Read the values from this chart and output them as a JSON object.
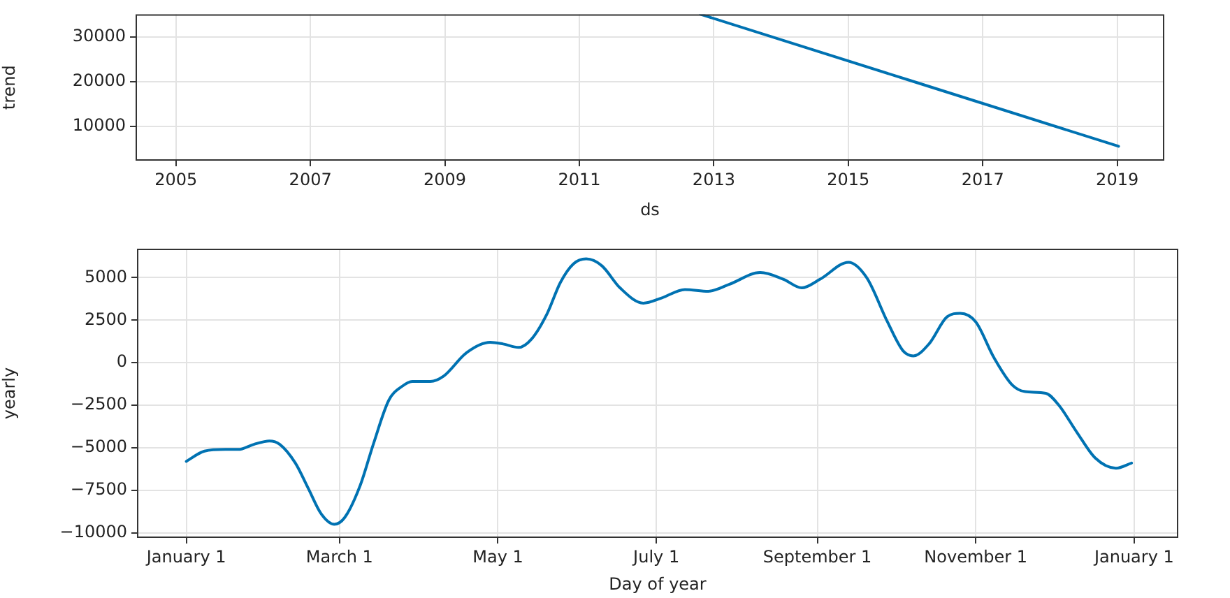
{
  "chart_data": [
    {
      "type": "line",
      "xlabel": "ds",
      "ylabel": "trend",
      "x": [
        2012.8,
        2019.02
      ],
      "series": [
        {
          "color": "#0072b2",
          "values": [
            35000,
            5600
          ]
        }
      ],
      "xlim": [
        2004.4,
        2019.7
      ],
      "xticks": [
        2005,
        2007,
        2009,
        2011,
        2013,
        2015,
        2017,
        2019
      ],
      "ylim": [
        2400,
        35000
      ],
      "yticks": [
        10000,
        20000,
        30000
      ],
      "grid": true
    },
    {
      "type": "line",
      "xlabel": "Day of year",
      "ylabel": "yearly",
      "x": [
        "2017-01-01",
        "2017-01-08",
        "2017-01-16",
        "2017-01-21",
        "2017-01-27",
        "2017-02-02",
        "2017-02-06",
        "2017-02-12",
        "2017-02-17",
        "2017-02-22",
        "2017-02-27",
        "2017-03-03",
        "2017-03-09",
        "2017-03-14",
        "2017-03-20",
        "2017-03-25",
        "2017-03-29",
        "2017-04-05",
        "2017-04-10",
        "2017-04-19",
        "2017-04-28",
        "2017-05-03",
        "2017-05-09",
        "2017-05-14",
        "2017-05-20",
        "2017-05-25",
        "2017-05-30",
        "2017-06-04",
        "2017-06-10",
        "2017-06-17",
        "2017-06-26",
        "2017-07-03",
        "2017-07-12",
        "2017-07-21",
        "2017-07-29",
        "2017-08-10",
        "2017-08-19",
        "2017-08-26",
        "2017-09-02",
        "2017-09-13",
        "2017-09-20",
        "2017-09-28",
        "2017-10-04",
        "2017-10-08",
        "2017-10-14",
        "2017-10-21",
        "2017-10-26",
        "2017-11-01",
        "2017-11-08",
        "2017-11-15",
        "2017-11-20",
        "2017-11-28",
        "2017-12-03",
        "2017-12-10",
        "2017-12-17",
        "2017-12-25",
        "2017-12-31"
      ],
      "series": [
        {
          "color": "#0072b2",
          "values": [
            -5800,
            -5200,
            -5100,
            -5100,
            -4800,
            -4600,
            -4800,
            -5900,
            -7400,
            -8900,
            -9500,
            -9100,
            -7200,
            -4800,
            -2200,
            -1400,
            -1100,
            -1100,
            -800,
            600,
            1200,
            1100,
            900,
            1400,
            2900,
            4700,
            5800,
            6100,
            5700,
            4400,
            3500,
            3800,
            4300,
            4200,
            4600,
            5300,
            4900,
            4400,
            4900,
            5900,
            5000,
            2400,
            700,
            400,
            1100,
            2700,
            2900,
            2400,
            300,
            -1300,
            -1700,
            -1800,
            -2500,
            -4100,
            -5600,
            -6200,
            -5900
          ]
        }
      ],
      "xlim": [
        "2016-12-13",
        "2018-01-18"
      ],
      "xticks": [
        {
          "value": "2017-01-01",
          "label": "January 1"
        },
        {
          "value": "2017-03-01",
          "label": "March 1"
        },
        {
          "value": "2017-05-01",
          "label": "May 1"
        },
        {
          "value": "2017-07-01",
          "label": "July 1"
        },
        {
          "value": "2017-09-01",
          "label": "September 1"
        },
        {
          "value": "2017-11-01",
          "label": "November 1"
        },
        {
          "value": "2018-01-01",
          "label": "January 1"
        }
      ],
      "ylim": [
        -10300,
        6700
      ],
      "yticks": [
        {
          "value": -10000,
          "label": "−10000"
        },
        {
          "value": -7500,
          "label": "−7500"
        },
        {
          "value": -5000,
          "label": "−5000"
        },
        {
          "value": -2500,
          "label": "−2500"
        },
        0,
        2500,
        5000
      ],
      "grid": true
    }
  ]
}
